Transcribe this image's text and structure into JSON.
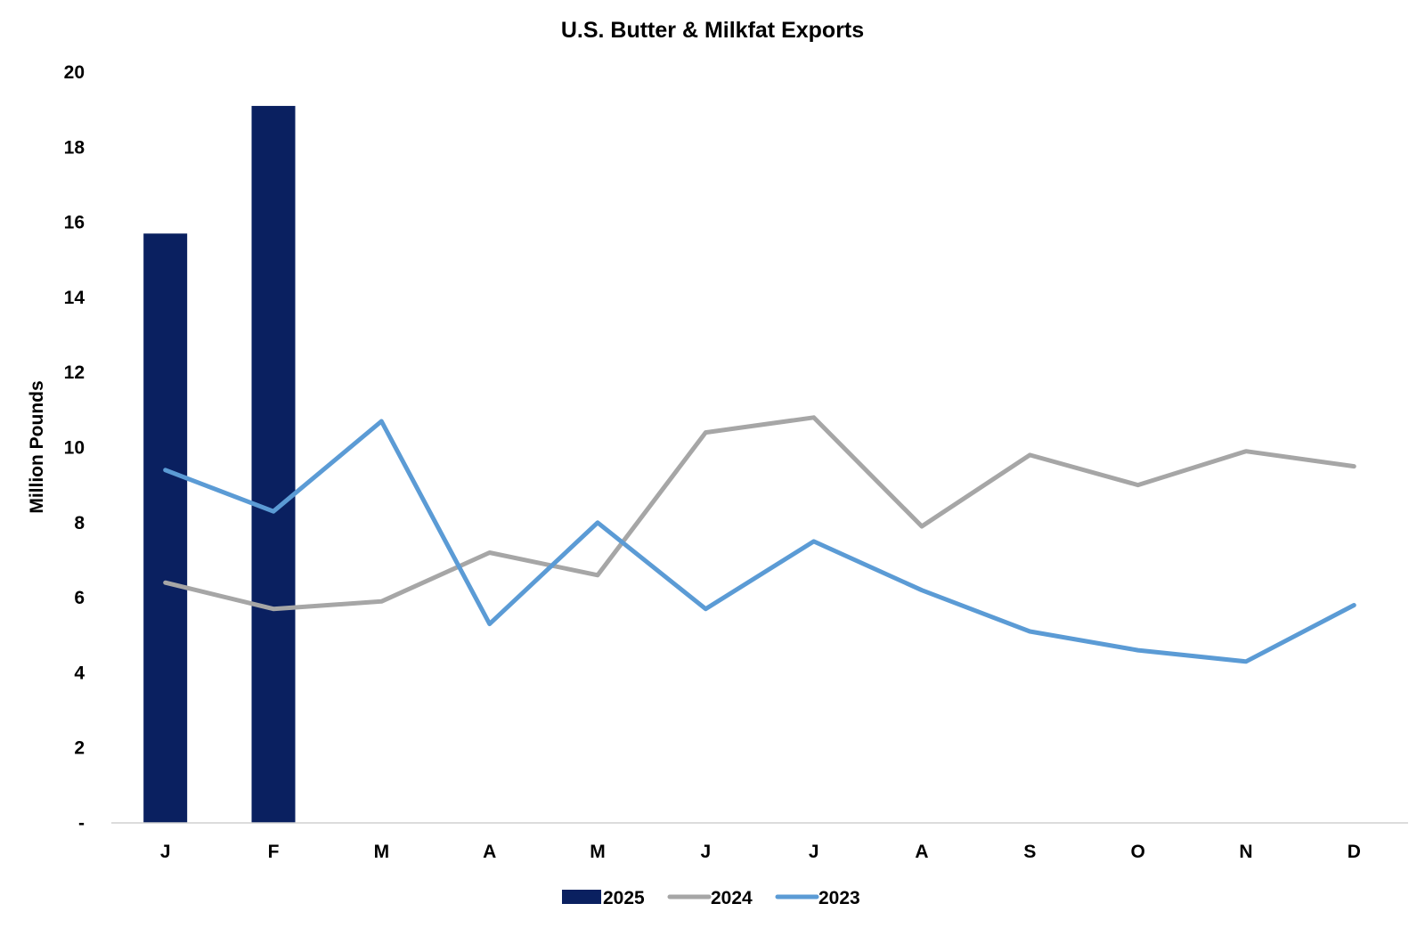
{
  "chart_data": {
    "type": "bar",
    "title": "U.S. Butter & Milkfat Exports",
    "xlabel": "",
    "ylabel": "Million Pounds",
    "ylim": [
      0,
      20
    ],
    "yticks": [
      0,
      2,
      4,
      6,
      8,
      10,
      12,
      14,
      16,
      18,
      20
    ],
    "ytick_labels": [
      "-",
      "2",
      "4",
      "6",
      "8",
      "10",
      "12",
      "14",
      "16",
      "18",
      "20"
    ],
    "categories": [
      "J",
      "F",
      "M",
      "A",
      "M",
      "J",
      "J",
      "A",
      "S",
      "O",
      "N",
      "D"
    ],
    "grid": false,
    "legend_position": "bottom-center",
    "series": [
      {
        "name": "2025",
        "type": "bar",
        "color": "#0a2060",
        "values": [
          15.7,
          19.1,
          null,
          null,
          null,
          null,
          null,
          null,
          null,
          null,
          null,
          null
        ]
      },
      {
        "name": "2024",
        "type": "line",
        "color": "#a6a6a6",
        "values": [
          6.4,
          5.7,
          5.9,
          7.2,
          6.6,
          10.4,
          10.8,
          7.9,
          9.8,
          9.0,
          9.9,
          9.5
        ]
      },
      {
        "name": "2023",
        "type": "line",
        "color": "#5b9bd5",
        "values": [
          9.4,
          8.3,
          10.7,
          5.3,
          8.0,
          5.7,
          7.5,
          6.2,
          5.1,
          4.6,
          4.3,
          5.8
        ]
      }
    ]
  }
}
